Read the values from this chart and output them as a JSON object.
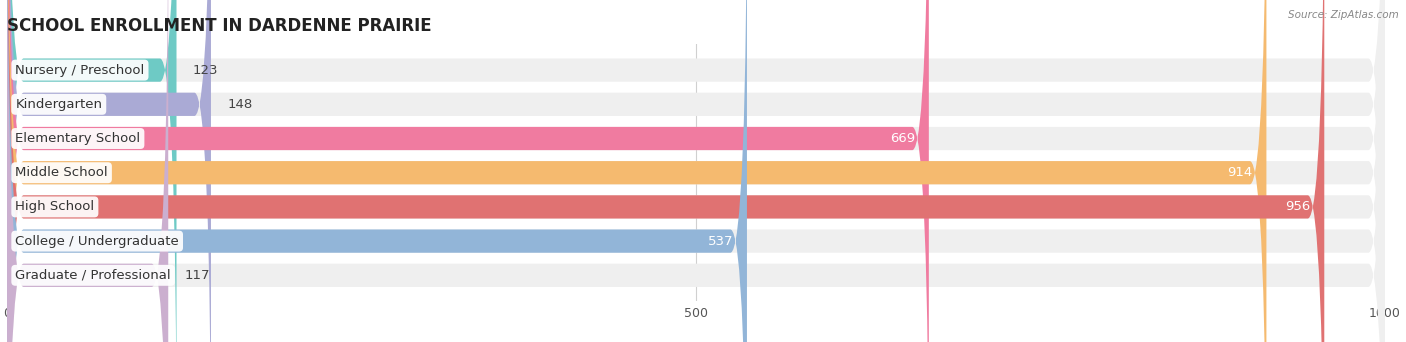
{
  "title": "SCHOOL ENROLLMENT IN DARDENNE PRAIRIE",
  "source": "Source: ZipAtlas.com",
  "categories": [
    "Nursery / Preschool",
    "Kindergarten",
    "Elementary School",
    "Middle School",
    "High School",
    "College / Undergraduate",
    "Graduate / Professional"
  ],
  "values": [
    123,
    148,
    669,
    914,
    956,
    537,
    117
  ],
  "bar_colors": [
    "#6ecac5",
    "#aaaad5",
    "#f07ba0",
    "#f5ba6f",
    "#e07272",
    "#92b5d8",
    "#cbafcf"
  ],
  "bar_bg_color": "#efefef",
  "xlim": [
    0,
    1000
  ],
  "xticks": [
    0,
    500,
    1000
  ],
  "title_fontsize": 12,
  "label_fontsize": 9.5,
  "value_fontsize": 9.5,
  "bar_height": 0.68,
  "background_color": "#ffffff",
  "grid_color": "#d0d0d0"
}
